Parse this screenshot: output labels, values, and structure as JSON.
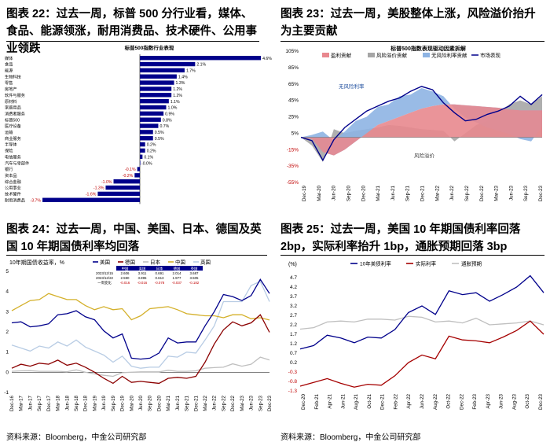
{
  "titles": {
    "c22": "图表 22：过去一周，标普 500 分行业看，媒体、食品、能源领涨，耐用消费品、技术硬件、公用事业领跌",
    "c23": "图表 23：过去一周，美股整体上涨，风险溢价抬升为主要贡献",
    "c24": "图表 24：过去一周，中国、美国、日本、德国及英国 10 年期国债利率均回落",
    "c25": "图表 25：过去一周，美国 10 年期国债利率回落 2bp，实际利率抬升 1bp，通胀预期回落 3bp"
  },
  "source": "资料来源：Bloomberg，中金公司研究部",
  "chart_data": [
    {
      "id": "c22",
      "type": "bar",
      "title": "标普500指数行业表现",
      "color": "#00008b",
      "categories": [
        "媒体",
        "食品",
        "能源",
        "生物科技",
        "零售",
        "房地产",
        "软件与服务",
        "原材料",
        "家庭用品",
        "消费者服务",
        "标普500",
        "医疗设备",
        "运输",
        "商业服务",
        "半导体",
        "保险",
        "电信服务",
        "汽车与零部件",
        "银行",
        "资本品",
        "综合金融",
        "公用事业",
        "技术硬件",
        "耐用消费品"
      ],
      "values": [
        4.6,
        2.1,
        1.7,
        1.4,
        1.3,
        1.2,
        1.2,
        1.1,
        1.0,
        0.9,
        0.8,
        0.7,
        0.5,
        0.5,
        0.2,
        0.2,
        0.1,
        -0.0,
        -0.1,
        -0.2,
        -1.0,
        -1.3,
        -1.6,
        -3.7
      ],
      "labels": [
        "4.6%",
        "2.1%",
        "1.7%",
        "1.4%",
        "1.3%",
        "1.2%",
        "1.2%",
        "1.1%",
        "1.0%",
        "0.9%",
        "0.8%",
        "0.7%",
        "0.5%",
        "0.5%",
        "0.2%",
        "0.2%",
        "0.1%",
        "-0.0%",
        "-0.1%",
        "-0.2%",
        "-1.0%",
        "-1.3%",
        "-1.6%",
        "-3.7%"
      ]
    },
    {
      "id": "c23",
      "type": "area",
      "title": "标普500指数表现驱动因素拆解",
      "yticks": [
        "105%",
        "85%",
        "65%",
        "45%",
        "25%",
        "5%",
        "-15%",
        "-35%",
        "-55%"
      ],
      "ylim": [
        -55,
        105
      ],
      "xticks": [
        "Dec-19",
        "Mar-20",
        "Jun-20",
        "Sep-20",
        "Dec-20",
        "Mar-21",
        "Jun-21",
        "Sep-21",
        "Dec-21",
        "Mar-22",
        "Jun-22",
        "Sep-22",
        "Dec-22",
        "Mar-23",
        "Jun-23",
        "Sep-23",
        "Dec-23"
      ],
      "legend": [
        "盈利贡献",
        "风险溢价贡献",
        "无风险利率贡献",
        "市场表现"
      ],
      "annotations": [
        "无风险利率",
        "风险溢价"
      ],
      "colors": {
        "earnings": "#e8888e",
        "risk_premium": "#a6a6a6",
        "risk_free": "#8eb4e3",
        "market": "#00008b"
      },
      "series": [
        {
          "name": "盈利贡献",
          "values": [
            0,
            -2,
            -18,
            -22,
            -15,
            -5,
            5,
            15,
            20,
            25,
            30,
            35,
            38,
            40,
            40,
            39,
            38,
            37,
            36,
            34,
            33,
            33,
            33
          ]
        },
        {
          "name": "风险溢价贡献",
          "values": [
            0,
            -10,
            -30,
            10,
            5,
            8,
            10,
            12,
            15,
            14,
            12,
            10,
            9,
            8,
            -5,
            5,
            15,
            20,
            30,
            40,
            45,
            40,
            50
          ]
        },
        {
          "name": "无风险利率贡献",
          "values": [
            0,
            5,
            25,
            18,
            22,
            25,
            20,
            22,
            20,
            25,
            22,
            25,
            18,
            10,
            -5,
            -15,
            -20,
            -25,
            -28,
            -30,
            -35,
            -38,
            -20
          ]
        },
        {
          "name": "市场表现",
          "values": [
            0,
            -4,
            -28,
            -3,
            12,
            22,
            32,
            38,
            44,
            48,
            56,
            62,
            58,
            42,
            30,
            20,
            22,
            28,
            32,
            38,
            50,
            40,
            52
          ]
        }
      ]
    },
    {
      "id": "c24",
      "type": "line",
      "ylabel": "10年期国债收益率，%",
      "yticks": [
        "5",
        "4",
        "3",
        "2",
        "1",
        "0",
        "-1"
      ],
      "ylim": [
        -1,
        5
      ],
      "xticks": [
        "Dec-16",
        "Mar-17",
        "Jun-17",
        "Sep-17",
        "Dec-17",
        "Mar-18",
        "Jun-18",
        "Sep-18",
        "Dec-18",
        "Mar-19",
        "Jun-19",
        "Sep-19",
        "Dec-19",
        "Mar-20",
        "Jun-20",
        "Sep-20",
        "Dec-20",
        "Mar-21",
        "Jun-21",
        "Sep-21",
        "Dec-21",
        "Mar-22",
        "Jun-22",
        "Sep-22",
        "Dec-22",
        "Mar-23",
        "Jun-23",
        "Sep-23",
        "Dec-23"
      ],
      "colors": {
        "美国": "#00008b",
        "德国": "#8b0000",
        "日本": "#bfbfbf",
        "中国": "#d4b02a",
        "英国": "#b8cce4"
      },
      "table": {
        "header": [
          "",
          "中国",
          "美国",
          "日本",
          "德国",
          "英国"
        ],
        "rows": [
          [
            "2023/12/15",
            "2.606",
            "3.911",
            "0.691",
            "2.014",
            "3.687"
          ],
          [
            "2023/12/22",
            "2.590",
            "3.895",
            "0.613",
            "1.977",
            "3.505"
          ],
          [
            "一周变化",
            "-0.016",
            "-0.016",
            "-0.078",
            "-0.037",
            "-0.182"
          ]
        ]
      },
      "series": [
        {
          "name": "美国",
          "values": [
            2.45,
            2.5,
            2.25,
            2.3,
            2.4,
            2.85,
            2.9,
            3.05,
            2.75,
            2.6,
            2.05,
            1.7,
            1.9,
            0.7,
            0.65,
            0.7,
            0.95,
            1.7,
            1.45,
            1.5,
            1.5,
            2.3,
            3.0,
            3.85,
            3.75,
            3.55,
            3.8,
            4.6,
            3.9
          ]
        },
        {
          "name": "德国",
          "values": [
            0.2,
            0.4,
            0.3,
            0.45,
            0.4,
            0.6,
            0.35,
            0.45,
            0.25,
            0.0,
            -0.3,
            -0.55,
            -0.2,
            -0.5,
            -0.45,
            -0.5,
            -0.55,
            -0.3,
            -0.25,
            -0.3,
            -0.2,
            0.5,
            1.4,
            2.1,
            2.5,
            2.3,
            2.45,
            2.85,
            1.98
          ]
        },
        {
          "name": "日本",
          "values": [
            0.05,
            0.07,
            0.08,
            0.05,
            0.05,
            0.05,
            0.03,
            0.12,
            0.0,
            -0.08,
            -0.15,
            -0.2,
            -0.02,
            0.0,
            0.02,
            0.02,
            0.02,
            0.1,
            0.05,
            0.05,
            0.07,
            0.2,
            0.23,
            0.25,
            0.42,
            0.3,
            0.4,
            0.75,
            0.61
          ]
        },
        {
          "name": "中国",
          "values": [
            3.05,
            3.3,
            3.55,
            3.6,
            3.9,
            3.75,
            3.6,
            3.6,
            3.3,
            3.1,
            3.25,
            3.1,
            3.15,
            2.6,
            2.8,
            3.15,
            3.2,
            3.25,
            3.1,
            2.9,
            2.85,
            2.8,
            2.8,
            2.7,
            2.85,
            2.85,
            2.65,
            2.7,
            2.59
          ]
        },
        {
          "name": "英国",
          "values": [
            1.35,
            1.2,
            1.05,
            1.3,
            1.2,
            1.5,
            1.3,
            1.6,
            1.25,
            1.05,
            0.85,
            0.5,
            0.8,
            0.3,
            0.2,
            0.25,
            0.25,
            0.8,
            0.75,
            1.0,
            0.95,
            1.6,
            2.3,
            3.5,
            3.5,
            3.5,
            4.3,
            4.5,
            3.5
          ]
        }
      ]
    },
    {
      "id": "c25",
      "type": "line",
      "ylabel": "(%)",
      "yticks": [
        "4.7",
        "4.2",
        "3.7",
        "3.2",
        "2.7",
        "2.2",
        "1.7",
        "1.2",
        "0.7",
        "0.2",
        "-0.3",
        "-0.8",
        "-1.3"
      ],
      "ylim": [
        -1.3,
        4.7
      ],
      "xticks": [
        "Dec-20",
        "Feb-21",
        "Apr-21",
        "Jun-21",
        "Aug-21",
        "Oct-21",
        "Dec-21",
        "Feb-22",
        "Apr-22",
        "Jun-22",
        "Aug-22",
        "Oct-22",
        "Dec-22",
        "Feb-23",
        "Apr-23",
        "Jun-23",
        "Aug-23",
        "Oct-23",
        "Dec-23"
      ],
      "colors": {
        "10年美债利率": "#00008b",
        "实际利率": "#a50000",
        "通胀预期": "#bfbfbf"
      },
      "series": [
        {
          "name": "10年美债利率",
          "values": [
            0.92,
            1.1,
            1.65,
            1.5,
            1.25,
            1.55,
            1.5,
            1.95,
            2.85,
            3.2,
            2.75,
            4.0,
            3.8,
            3.9,
            3.45,
            3.8,
            4.2,
            4.8,
            3.9
          ]
        },
        {
          "name": "实际利率",
          "values": [
            -1.05,
            -0.85,
            -0.65,
            -0.9,
            -1.1,
            -0.95,
            -1.0,
            -0.5,
            0.2,
            0.6,
            0.4,
            1.6,
            1.4,
            1.35,
            1.25,
            1.55,
            1.9,
            2.4,
            1.7
          ]
        },
        {
          "name": "通胀预期",
          "values": [
            1.97,
            2.05,
            2.35,
            2.4,
            2.35,
            2.5,
            2.5,
            2.45,
            2.65,
            2.6,
            2.35,
            2.4,
            2.3,
            2.55,
            2.2,
            2.25,
            2.3,
            2.4,
            2.2
          ]
        }
      ]
    }
  ]
}
